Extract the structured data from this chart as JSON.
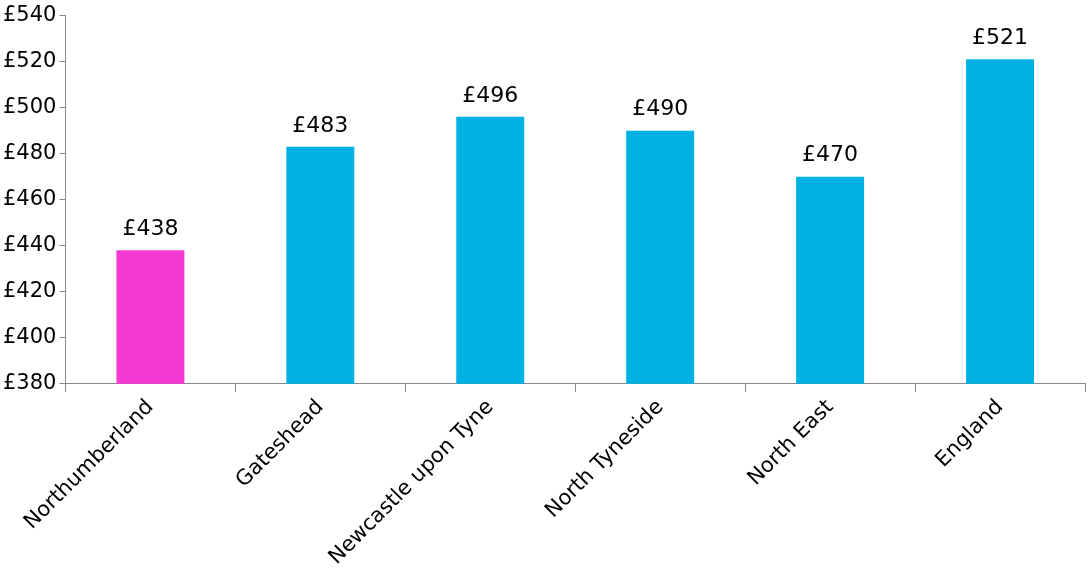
{
  "chart_data": {
    "type": "bar",
    "categories": [
      "Northumberland",
      "Gateshead",
      "Newcastle upon Tyne",
      "North Tyneside",
      "North East",
      "England"
    ],
    "values": [
      438,
      483,
      496,
      490,
      470,
      521
    ],
    "colors": [
      "#f53ad4",
      "#00b2e3",
      "#00b2e3",
      "#00b2e3",
      "#00b2e3",
      "#00b2e3"
    ],
    "value_labels": [
      "£438",
      "£483",
      "£496",
      "£490",
      "£470",
      "£521"
    ],
    "ylim": [
      380,
      540
    ],
    "yticks": [
      {
        "value": 380,
        "label": "£380"
      },
      {
        "value": 400,
        "label": "£400"
      },
      {
        "value": 420,
        "label": "£420"
      },
      {
        "value": 440,
        "label": "£440"
      },
      {
        "value": 460,
        "label": "£460"
      },
      {
        "value": 480,
        "label": "£480"
      },
      {
        "value": 500,
        "label": "£500"
      },
      {
        "value": 520,
        "label": "£520"
      },
      {
        "value": 540,
        "label": "£540"
      }
    ],
    "grid": false,
    "legend": false
  }
}
